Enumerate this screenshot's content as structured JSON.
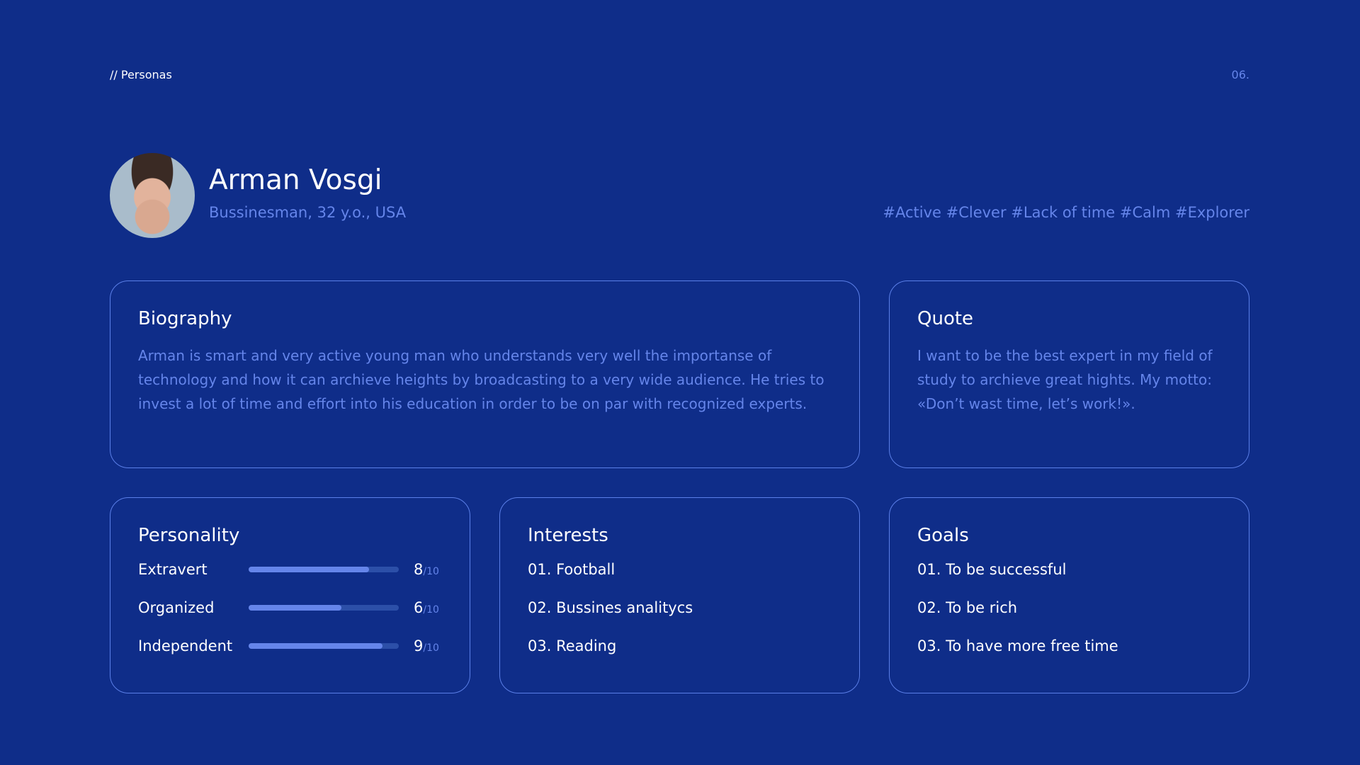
{
  "header": {
    "breadcrumb": "// Personas",
    "page_number": "06."
  },
  "persona": {
    "name": "Arman Vosgi",
    "subtitle": "Bussinesman, 32 y.o., USA",
    "tags": "#Active #Clever #Lack of time #Calm #Explorer"
  },
  "biography": {
    "title": "Biography",
    "text": "Arman is smart and very active young man who understands very well the importanse of technology and how it can archieve heights by broadcasting to a very wide audience. He tries to invest a lot of time and effort into his education in order to be on par with recognized experts."
  },
  "quote": {
    "title": "Quote",
    "text": "I want to be the best expert in my field of study to archieve great hights. My motto: «Don’t wast time, let’s work!»."
  },
  "personality": {
    "title": "Personality",
    "traits": [
      {
        "label": "Extravert",
        "value": "8",
        "max": "/10",
        "fraction": 0.8
      },
      {
        "label": "Organized",
        "value": "6",
        "max": "/10",
        "fraction": 0.62
      },
      {
        "label": "Independent",
        "value": "9",
        "max": "/10",
        "fraction": 0.89
      }
    ]
  },
  "interests": {
    "title": "Interests",
    "items": [
      "01. Football",
      "02. Bussines analitycs",
      "03. Reading"
    ]
  },
  "goals": {
    "title": "Goals",
    "items": [
      "01. To be successful",
      "02. To be rich",
      "03. To have more free time"
    ]
  },
  "colors": {
    "background": "#0f2d89",
    "accent": "#6585ea"
  }
}
